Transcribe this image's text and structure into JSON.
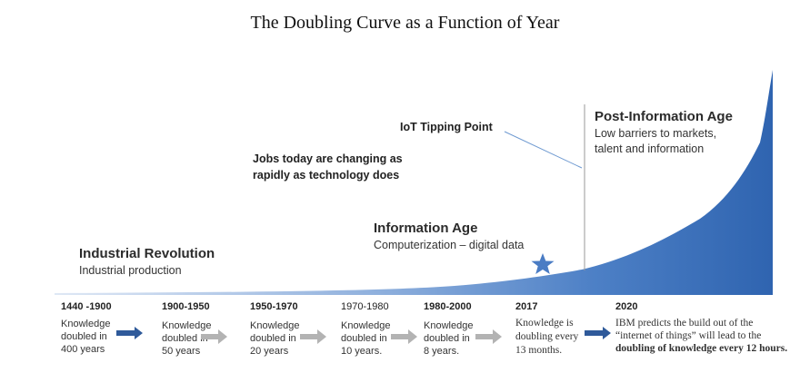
{
  "title": "The Doubling Curve as a Function of Year",
  "eras": {
    "industrial": {
      "heading": "Industrial Revolution",
      "sub": "Industrial production"
    },
    "information": {
      "heading": "Information Age",
      "sub": "Computerization – digital data"
    },
    "post": {
      "heading": "Post-Information Age",
      "sub_line1": "Low barriers  to markets,",
      "sub_line2": "talent and information"
    }
  },
  "notes": {
    "jobs_line1": "Jobs today are changing as",
    "jobs_line2": "rapidly as technology does",
    "iot": "IoT Tipping Point"
  },
  "periods": [
    {
      "label": "1440 -1900",
      "desc": [
        "Knowledge",
        "doubled in",
        "400 years"
      ]
    },
    {
      "label": "1900-1950",
      "desc": [
        "Knowledge",
        "doubled in",
        "50 years"
      ]
    },
    {
      "label": "1950-1970",
      "desc": [
        "Knowledge",
        "doubled in",
        "20 years"
      ]
    },
    {
      "label": "1970-1980",
      "desc": [
        "Knowledge",
        "doubled in",
        "10 years."
      ]
    },
    {
      "label": "1980-2000",
      "desc": [
        "Knowledge",
        "doubled in",
        "8 years."
      ]
    },
    {
      "label": "2017",
      "desc": [
        "Knowledge is",
        "doubling every",
        "13 months."
      ]
    },
    {
      "label": "2020",
      "desc": [
        "IBM predicts the build out of  the",
        "“internet of things” will lead to the",
        "doubling of knowledge every 12 hours."
      ]
    }
  ],
  "colors": {
    "curve_dark": "#3a6fb8",
    "curve_light": "#c9d9ef",
    "arrow_dark": "#2f5a9a",
    "arrow_gray": "#b3b3b3",
    "star": "#4a7cc4"
  },
  "icons": {
    "star": "star-icon",
    "arrow": "right-arrow-icon"
  }
}
